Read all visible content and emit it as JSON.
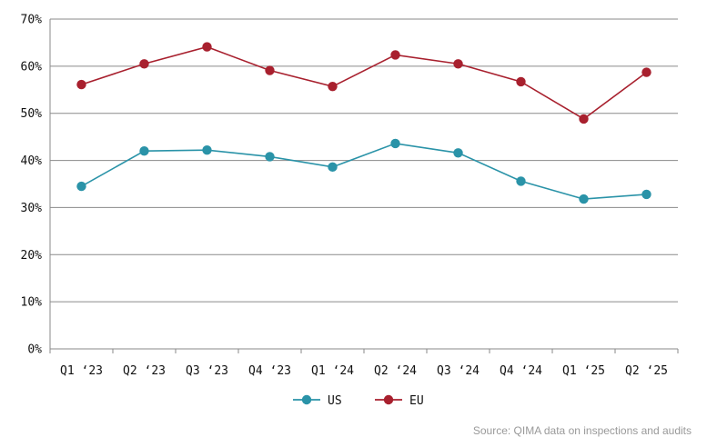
{
  "chart_data": {
    "type": "line",
    "categories": [
      "Q1 ‘23",
      "Q2 ‘23",
      "Q3 ‘23",
      "Q4 ‘23",
      "Q1 ‘24",
      "Q2 ‘24",
      "Q3 ‘24",
      "Q4 ‘24",
      "Q1 ‘25",
      "Q2 ‘25"
    ],
    "series": [
      {
        "name": "US",
        "color": "#2a93a8",
        "values": [
          34.5,
          42.0,
          42.2,
          40.8,
          38.6,
          43.6,
          41.6,
          35.6,
          31.8,
          32.8
        ]
      },
      {
        "name": "EU",
        "color": "#a8202e",
        "values": [
          56.1,
          60.5,
          64.1,
          59.1,
          55.7,
          62.4,
          60.5,
          56.7,
          48.8,
          58.7
        ]
      }
    ],
    "ylim": [
      0,
      70
    ],
    "yticks": [
      "0%",
      "10%",
      "20%",
      "30%",
      "40%",
      "50%",
      "60%",
      "70%"
    ],
    "grid": true,
    "legend_position": "bottom-center",
    "source": "Source: QIMA data on inspections and audits"
  }
}
